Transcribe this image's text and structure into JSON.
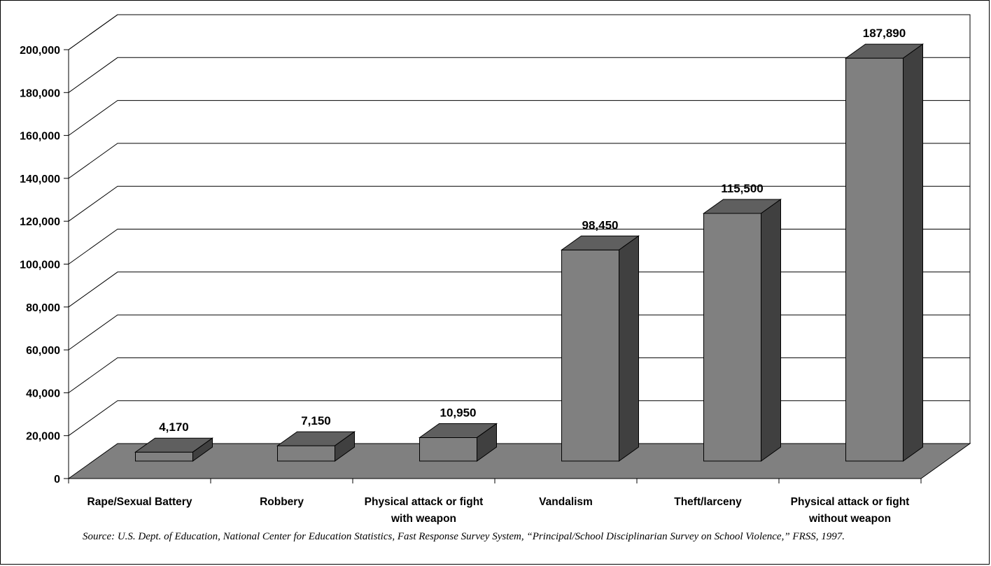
{
  "chart_data": {
    "type": "bar",
    "style": "3d",
    "categories": [
      [
        "Rape/Sexual Battery"
      ],
      [
        "Robbery"
      ],
      [
        "Physical attack or fight",
        "with weapon"
      ],
      [
        "Vandalism"
      ],
      [
        "Theft/larceny"
      ],
      [
        "Physical attack or fight",
        "without weapon"
      ]
    ],
    "values": [
      4170,
      7150,
      10950,
      98450,
      115500,
      187890
    ],
    "data_labels": [
      "4,170",
      "7,150",
      "10,950",
      "98,450",
      "115,500",
      "187,890"
    ],
    "y_ticks": [
      "0",
      "20,000",
      "40,000",
      "60,000",
      "80,000",
      "100,000",
      "120,000",
      "140,000",
      "160,000",
      "180,000",
      "200,000"
    ],
    "ylim": [
      0,
      200000
    ],
    "title": "",
    "xlabel": "",
    "ylabel": "",
    "grid": true,
    "legend": "none",
    "colors": {
      "bar_front": "#808080",
      "bar_top": "#5f5f5f",
      "bar_side": "#404040",
      "floor": "#808080",
      "grid": "#000000"
    }
  },
  "source_note": "Source: U.S. Dept. of Education, National Center for Education Statistics, Fast Response Survey System, “Principal/School Disciplinarian Survey on School Violence,” FRSS, 1997."
}
